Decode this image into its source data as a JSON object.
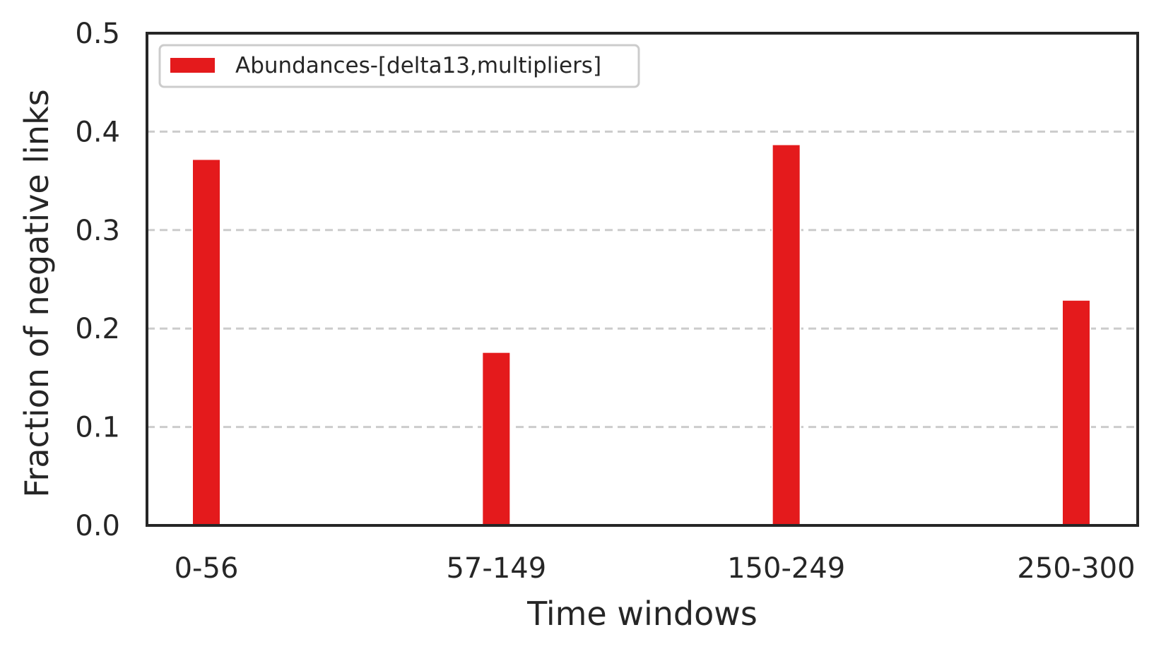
{
  "chart_data": {
    "type": "bar",
    "categories": [
      "0-56",
      "57-149",
      "150-249",
      "250-300"
    ],
    "series": [
      {
        "name": "Abundances-[delta13,multipliers]",
        "values": [
          0.372,
          0.176,
          0.387,
          0.229
        ],
        "color": "#e41a1c"
      }
    ],
    "xlabel": "Time windows",
    "ylabel": "Fraction of negative links",
    "ylim": [
      0,
      0.5
    ],
    "yticks": [
      "0.0",
      "0.1",
      "0.2",
      "0.3",
      "0.4",
      "0.5"
    ],
    "grid": "horizontal dashed",
    "legend_position": "top-left"
  }
}
